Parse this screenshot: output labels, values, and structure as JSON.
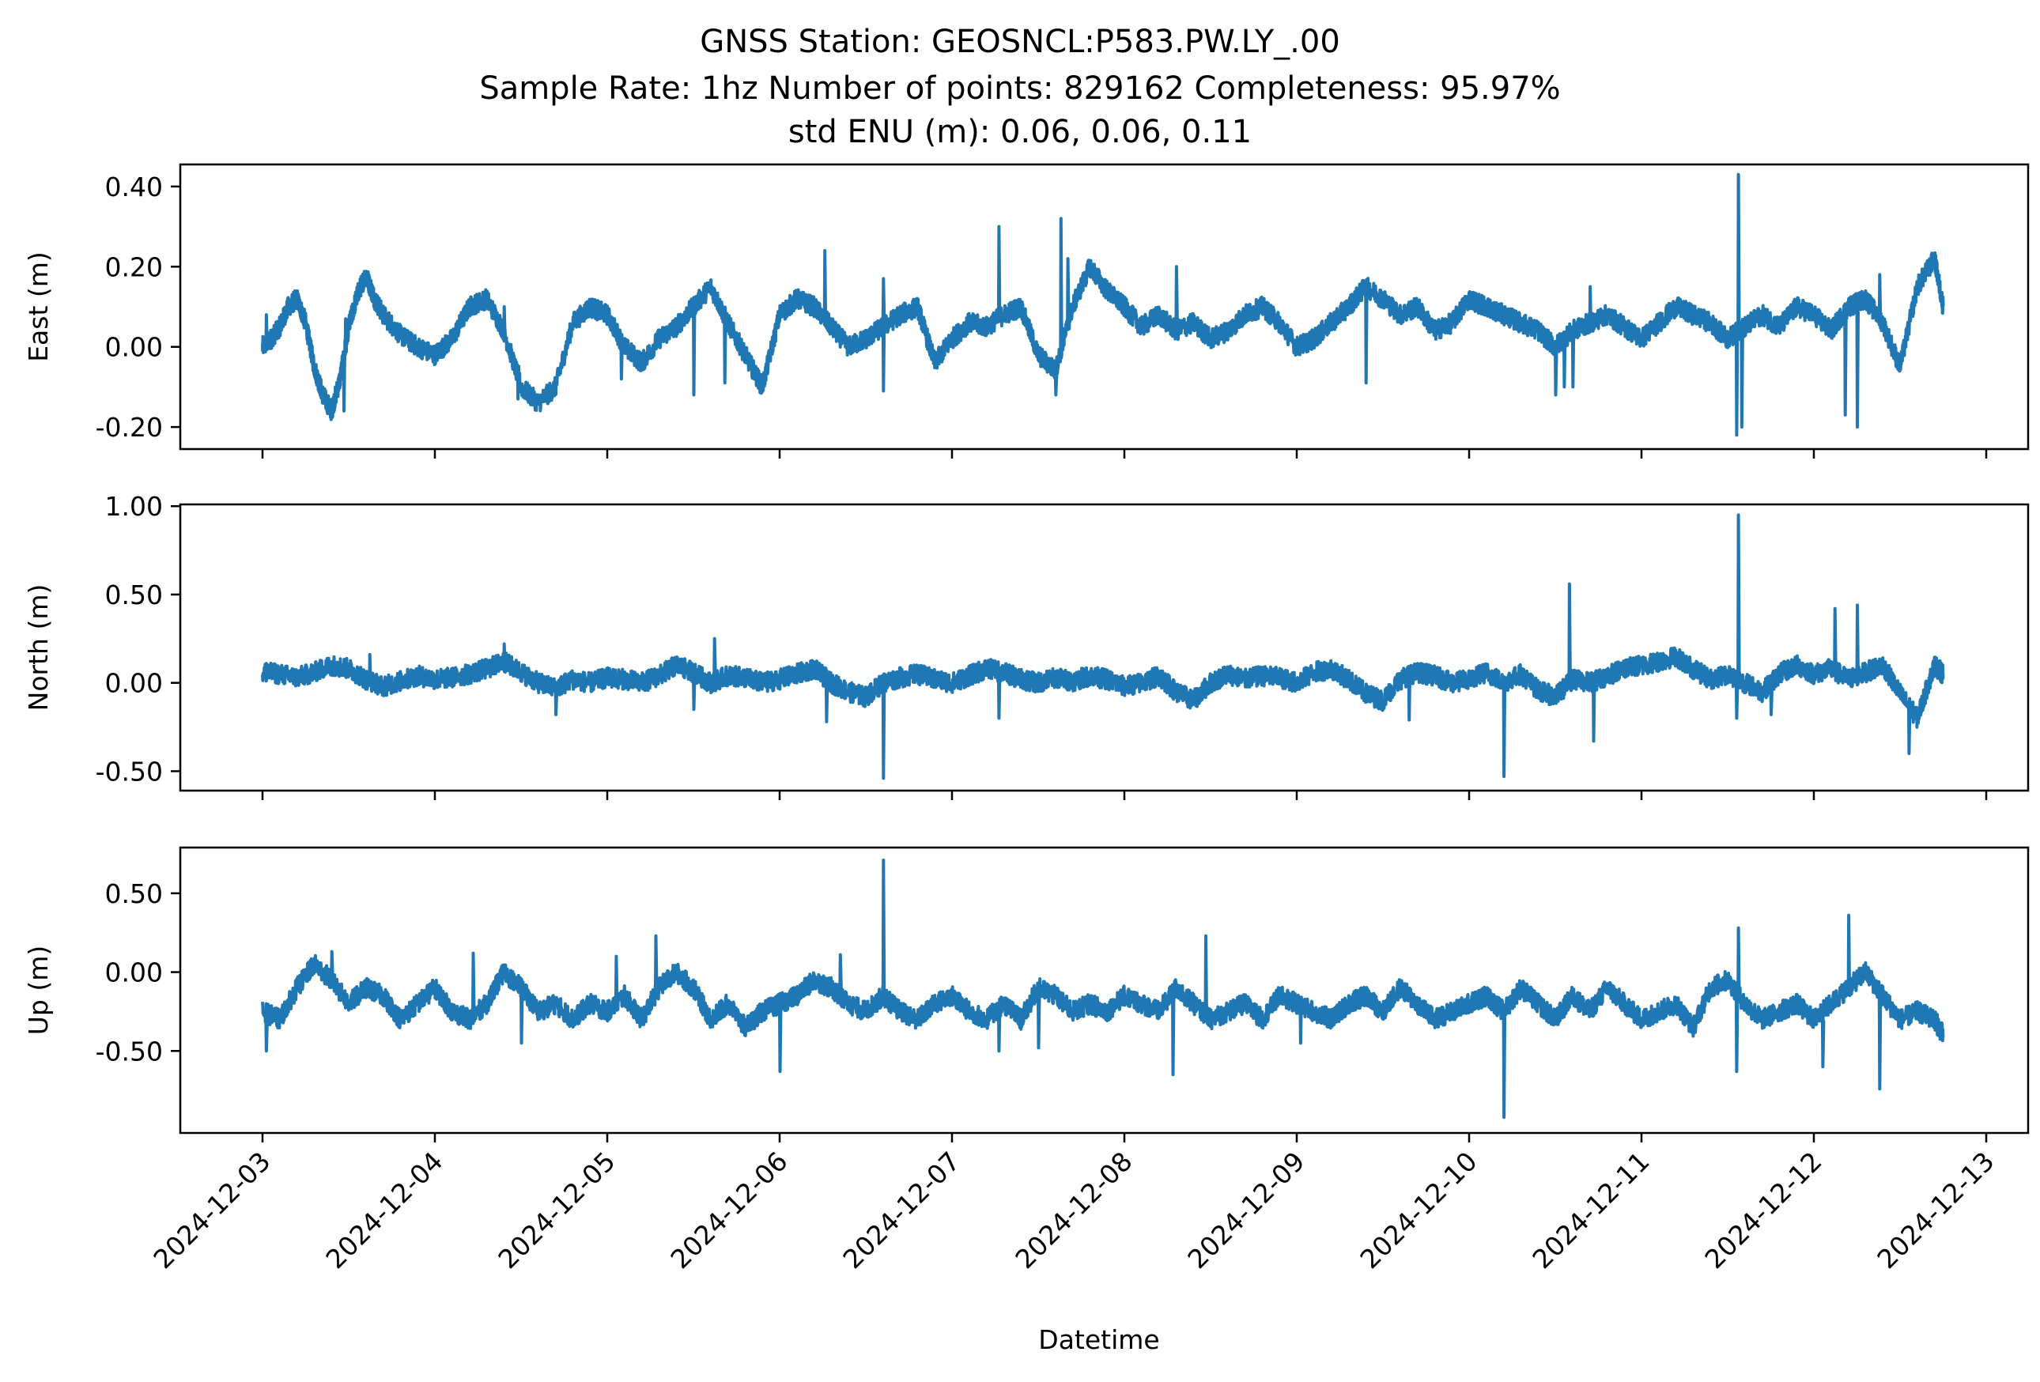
{
  "chart_data": {
    "type": "line",
    "title_lines": [
      "GNSS Station: GEOSNCL:P583.PW.LY_.00",
      "Sample Rate: 1hz   Number of points: 829162    Completeness:  95.97%",
      "std ENU (m):  0.06, 0.06, 0.11"
    ],
    "xlabel": "Datetime",
    "x_ticks": [
      "2024-12-03",
      "2024-12-04",
      "2024-12-05",
      "2024-12-06",
      "2024-12-07",
      "2024-12-08",
      "2024-12-09",
      "2024-12-10",
      "2024-12-11",
      "2024-12-12",
      "2024-12-13"
    ],
    "x_range": [
      "2024-12-02 12:00",
      "2024-12-13 00:30"
    ],
    "line_color": "#1f77b4",
    "panels": [
      {
        "ylabel": "East (m)",
        "ylim": [
          -0.255,
          0.455
        ],
        "y_ticks": [
          0.4,
          0.2,
          0.0,
          -0.2
        ],
        "y_tick_labels": [
          "0.40",
          "0.20",
          "0.00",
          "-0.20"
        ],
        "x_days": [
          0,
          0.05,
          0.1,
          0.15,
          0.2,
          0.25,
          0.3,
          0.35,
          0.4,
          0.45,
          0.5,
          0.55,
          0.6,
          0.65,
          0.7,
          0.8,
          0.9,
          1.0,
          1.1,
          1.2,
          1.3,
          1.4,
          1.5,
          1.6,
          1.7,
          1.8,
          1.9,
          2.0,
          2.1,
          2.2,
          2.3,
          2.4,
          2.5,
          2.6,
          2.7,
          2.8,
          2.9,
          3.0,
          3.1,
          3.2,
          3.3,
          3.4,
          3.5,
          3.6,
          3.7,
          3.8,
          3.9,
          4.0,
          4.1,
          4.2,
          4.3,
          4.4,
          4.5,
          4.6,
          4.7,
          4.8,
          4.9,
          5.0,
          5.1,
          5.2,
          5.3,
          5.4,
          5.5,
          5.6,
          5.7,
          5.8,
          5.9,
          6.0,
          6.1,
          6.2,
          6.3,
          6.4,
          6.5,
          6.6,
          6.7,
          6.8,
          6.9,
          7.0,
          7.1,
          7.2,
          7.3,
          7.4,
          7.5,
          7.6,
          7.7,
          7.8,
          7.9,
          8.0,
          8.1,
          8.2,
          8.3,
          8.4,
          8.5,
          8.6,
          8.7,
          8.8,
          8.9,
          9.0,
          9.1,
          9.2,
          9.3,
          9.4,
          9.5,
          9.6,
          9.7,
          9.75
        ],
        "values": [
          0.0,
          0.02,
          0.05,
          0.1,
          0.12,
          0.06,
          -0.05,
          -0.12,
          -0.16,
          -0.08,
          0.05,
          0.13,
          0.18,
          0.12,
          0.08,
          0.03,
          0.0,
          -0.02,
          0.02,
          0.1,
          0.12,
          0.04,
          -0.1,
          -0.14,
          -0.1,
          0.06,
          0.1,
          0.08,
          0.0,
          -0.04,
          0.02,
          0.05,
          0.1,
          0.15,
          0.06,
          -0.02,
          -0.1,
          0.08,
          0.12,
          0.1,
          0.05,
          0.0,
          0.02,
          0.05,
          0.08,
          0.1,
          -0.04,
          0.02,
          0.06,
          0.05,
          0.08,
          0.1,
          -0.02,
          -0.06,
          0.1,
          0.2,
          0.14,
          0.1,
          0.05,
          0.08,
          0.04,
          0.06,
          0.02,
          0.04,
          0.08,
          0.1,
          0.06,
          0.0,
          0.02,
          0.06,
          0.1,
          0.15,
          0.12,
          0.08,
          0.1,
          0.04,
          0.06,
          0.12,
          0.1,
          0.08,
          0.06,
          0.04,
          0.0,
          0.04,
          0.06,
          0.08,
          0.05,
          0.02,
          0.06,
          0.1,
          0.08,
          0.06,
          0.02,
          0.05,
          0.08,
          0.05,
          0.1,
          0.08,
          0.04,
          0.1,
          0.12,
          0.06,
          -0.05,
          0.15,
          0.22,
          0.1
        ],
        "spikes": [
          {
            "x": 0.02,
            "y": 0.08
          },
          {
            "x": 0.47,
            "y": -0.16
          },
          {
            "x": 0.48,
            "y": 0.07
          },
          {
            "x": 1.4,
            "y": 0.1
          },
          {
            "x": 1.48,
            "y": -0.13
          },
          {
            "x": 2.08,
            "y": -0.08
          },
          {
            "x": 2.5,
            "y": -0.12
          },
          {
            "x": 2.68,
            "y": -0.09
          },
          {
            "x": 3.26,
            "y": 0.24
          },
          {
            "x": 3.6,
            "y": -0.11
          },
          {
            "x": 3.6,
            "y": 0.17
          },
          {
            "x": 4.27,
            "y": 0.3
          },
          {
            "x": 4.6,
            "y": -0.12
          },
          {
            "x": 4.63,
            "y": 0.32
          },
          {
            "x": 4.67,
            "y": 0.22
          },
          {
            "x": 5.3,
            "y": 0.2
          },
          {
            "x": 6.4,
            "y": -0.09
          },
          {
            "x": 7.5,
            "y": -0.12
          },
          {
            "x": 7.55,
            "y": -0.1
          },
          {
            "x": 7.6,
            "y": -0.1
          },
          {
            "x": 7.7,
            "y": 0.15
          },
          {
            "x": 8.55,
            "y": -0.22
          },
          {
            "x": 8.56,
            "y": 0.43
          },
          {
            "x": 8.58,
            "y": -0.2
          },
          {
            "x": 9.18,
            "y": -0.17
          },
          {
            "x": 9.25,
            "y": -0.2
          },
          {
            "x": 9.38,
            "y": 0.18
          }
        ]
      },
      {
        "ylabel": "North (m)",
        "ylim": [
          -0.61,
          1.01
        ],
        "y_ticks": [
          1.0,
          0.5,
          0.0,
          -0.5
        ],
        "y_tick_labels": [
          "1.00",
          "0.50",
          "0.00",
          "-0.50"
        ],
        "x_days": [
          0,
          0.1,
          0.2,
          0.3,
          0.4,
          0.5,
          0.6,
          0.7,
          0.8,
          0.9,
          1.0,
          1.1,
          1.2,
          1.3,
          1.4,
          1.5,
          1.6,
          1.7,
          1.8,
          1.9,
          2.0,
          2.1,
          2.2,
          2.3,
          2.4,
          2.5,
          2.6,
          2.7,
          2.8,
          2.9,
          3.0,
          3.1,
          3.2,
          3.3,
          3.4,
          3.5,
          3.6,
          3.7,
          3.8,
          3.9,
          4.0,
          4.1,
          4.2,
          4.3,
          4.4,
          4.5,
          4.6,
          4.7,
          4.8,
          4.9,
          5.0,
          5.1,
          5.2,
          5.3,
          5.4,
          5.5,
          5.6,
          5.7,
          5.8,
          5.9,
          6.0,
          6.1,
          6.2,
          6.3,
          6.4,
          6.5,
          6.6,
          6.7,
          6.8,
          6.9,
          7.0,
          7.1,
          7.2,
          7.3,
          7.4,
          7.5,
          7.6,
          7.7,
          7.8,
          7.9,
          8.0,
          8.1,
          8.2,
          8.3,
          8.4,
          8.5,
          8.6,
          8.7,
          8.8,
          8.9,
          9.0,
          9.1,
          9.2,
          9.3,
          9.4,
          9.5,
          9.6,
          9.7,
          9.75
        ],
        "values": [
          0.06,
          0.05,
          0.03,
          0.06,
          0.1,
          0.08,
          0.02,
          -0.02,
          0.01,
          0.04,
          0.02,
          0.03,
          0.05,
          0.08,
          0.12,
          0.06,
          0.0,
          -0.03,
          0.02,
          0.0,
          0.03,
          0.02,
          0.0,
          0.04,
          0.1,
          0.06,
          0.0,
          0.04,
          0.03,
          0.0,
          0.02,
          0.05,
          0.08,
          0.0,
          -0.05,
          -0.08,
          0.0,
          0.03,
          0.05,
          0.02,
          0.0,
          0.04,
          0.08,
          0.06,
          0.02,
          0.0,
          0.03,
          0.01,
          0.04,
          0.02,
          -0.02,
          0.0,
          0.04,
          -0.05,
          -0.1,
          0.0,
          0.05,
          0.02,
          0.04,
          0.03,
          0.0,
          0.06,
          0.08,
          0.02,
          -0.06,
          -0.1,
          0.02,
          0.06,
          0.04,
          0.0,
          0.02,
          0.06,
          0.0,
          0.05,
          -0.04,
          -0.08,
          0.02,
          0.0,
          0.04,
          0.08,
          0.1,
          0.12,
          0.15,
          0.08,
          0.02,
          0.05,
          0.0,
          -0.05,
          0.05,
          0.1,
          0.05,
          0.08,
          0.02,
          0.06,
          0.1,
          -0.06,
          -0.2,
          0.1,
          0.05
        ],
        "spikes": [
          {
            "x": 0.02,
            "y": 0.11
          },
          {
            "x": 0.62,
            "y": 0.16
          },
          {
            "x": 1.4,
            "y": 0.22
          },
          {
            "x": 1.7,
            "y": -0.18
          },
          {
            "x": 2.5,
            "y": -0.15
          },
          {
            "x": 2.62,
            "y": 0.25
          },
          {
            "x": 3.27,
            "y": -0.22
          },
          {
            "x": 3.6,
            "y": -0.54
          },
          {
            "x": 4.27,
            "y": -0.2
          },
          {
            "x": 6.65,
            "y": -0.21
          },
          {
            "x": 7.2,
            "y": -0.53
          },
          {
            "x": 7.58,
            "y": 0.56
          },
          {
            "x": 7.72,
            "y": -0.33
          },
          {
            "x": 8.56,
            "y": 0.95
          },
          {
            "x": 8.55,
            "y": -0.2
          },
          {
            "x": 8.75,
            "y": -0.18
          },
          {
            "x": 9.12,
            "y": 0.42
          },
          {
            "x": 9.25,
            "y": 0.44
          },
          {
            "x": 9.55,
            "y": -0.4
          }
        ]
      },
      {
        "ylabel": "Up (m)",
        "ylim": [
          -1.02,
          0.79
        ],
        "y_ticks": [
          0.5,
          0.0,
          -0.5
        ],
        "y_tick_labels": [
          "0.50",
          "0.00",
          "-0.50"
        ],
        "x_days": [
          0,
          0.1,
          0.2,
          0.3,
          0.4,
          0.5,
          0.6,
          0.7,
          0.8,
          0.9,
          1.0,
          1.1,
          1.2,
          1.3,
          1.4,
          1.5,
          1.6,
          1.7,
          1.8,
          1.9,
          2.0,
          2.1,
          2.2,
          2.3,
          2.4,
          2.5,
          2.6,
          2.7,
          2.8,
          2.9,
          3.0,
          3.1,
          3.2,
          3.3,
          3.4,
          3.5,
          3.6,
          3.7,
          3.8,
          3.9,
          4.0,
          4.1,
          4.2,
          4.3,
          4.4,
          4.5,
          4.6,
          4.7,
          4.8,
          4.9,
          5.0,
          5.1,
          5.2,
          5.3,
          5.4,
          5.5,
          5.6,
          5.7,
          5.8,
          5.9,
          6.0,
          6.1,
          6.2,
          6.3,
          6.4,
          6.5,
          6.6,
          6.7,
          6.8,
          6.9,
          7.0,
          7.1,
          7.2,
          7.3,
          7.4,
          7.5,
          7.6,
          7.7,
          7.8,
          7.9,
          8.0,
          8.1,
          8.2,
          8.3,
          8.4,
          8.5,
          8.6,
          8.7,
          8.8,
          8.9,
          9.0,
          9.1,
          9.2,
          9.3,
          9.4,
          9.5,
          9.6,
          9.7,
          9.75
        ],
        "values": [
          -0.25,
          -0.3,
          -0.1,
          0.05,
          -0.05,
          -0.2,
          -0.1,
          -0.15,
          -0.3,
          -0.2,
          -0.1,
          -0.25,
          -0.3,
          -0.2,
          0.0,
          -0.1,
          -0.25,
          -0.2,
          -0.3,
          -0.2,
          -0.25,
          -0.15,
          -0.3,
          -0.1,
          0.0,
          -0.1,
          -0.3,
          -0.2,
          -0.35,
          -0.25,
          -0.2,
          -0.15,
          -0.05,
          -0.1,
          -0.2,
          -0.25,
          -0.15,
          -0.25,
          -0.3,
          -0.2,
          -0.15,
          -0.25,
          -0.3,
          -0.2,
          -0.3,
          -0.1,
          -0.15,
          -0.25,
          -0.2,
          -0.25,
          -0.15,
          -0.2,
          -0.25,
          -0.1,
          -0.2,
          -0.3,
          -0.25,
          -0.2,
          -0.3,
          -0.15,
          -0.2,
          -0.25,
          -0.3,
          -0.2,
          -0.15,
          -0.25,
          -0.1,
          -0.2,
          -0.3,
          -0.25,
          -0.2,
          -0.15,
          -0.25,
          -0.1,
          -0.2,
          -0.3,
          -0.15,
          -0.25,
          -0.1,
          -0.2,
          -0.3,
          -0.25,
          -0.2,
          -0.35,
          -0.1,
          -0.05,
          -0.2,
          -0.3,
          -0.25,
          -0.2,
          -0.3,
          -0.2,
          -0.1,
          0.0,
          -0.15,
          -0.3,
          -0.25,
          -0.3,
          -0.4
        ],
        "spikes": [
          {
            "x": 0.02,
            "y": -0.5
          },
          {
            "x": 0.4,
            "y": 0.13
          },
          {
            "x": 1.22,
            "y": 0.12
          },
          {
            "x": 1.5,
            "y": -0.45
          },
          {
            "x": 2.05,
            "y": 0.1
          },
          {
            "x": 2.28,
            "y": 0.23
          },
          {
            "x": 3.0,
            "y": -0.63
          },
          {
            "x": 3.35,
            "y": 0.11
          },
          {
            "x": 3.6,
            "y": 0.71
          },
          {
            "x": 4.27,
            "y": -0.5
          },
          {
            "x": 4.5,
            "y": -0.48
          },
          {
            "x": 5.28,
            "y": -0.65
          },
          {
            "x": 5.47,
            "y": 0.23
          },
          {
            "x": 6.02,
            "y": -0.45
          },
          {
            "x": 7.2,
            "y": -0.92
          },
          {
            "x": 8.55,
            "y": -0.63
          },
          {
            "x": 8.56,
            "y": 0.28
          },
          {
            "x": 9.2,
            "y": 0.36
          },
          {
            "x": 9.38,
            "y": -0.74
          },
          {
            "x": 9.05,
            "y": -0.6
          }
        ]
      }
    ]
  }
}
